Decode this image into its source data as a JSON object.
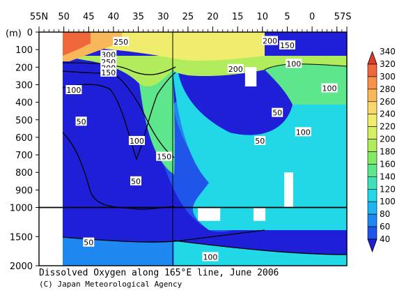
{
  "chart_data": {
    "type": "heatmap",
    "title": "Dissolved Oxygen along 165°E line, June 2006",
    "credit": "(C) Japan Meteorological Agency",
    "x_axis": {
      "ticks": [
        {
          "value": 55,
          "label": "55N"
        },
        {
          "value": 50,
          "label": "50"
        },
        {
          "value": 45,
          "label": "45"
        },
        {
          "value": 40,
          "label": "40"
        },
        {
          "value": 35,
          "label": "35"
        },
        {
          "value": 30,
          "label": "30"
        },
        {
          "value": 25,
          "label": "25"
        },
        {
          "value": 20,
          "label": "20"
        },
        {
          "value": 15,
          "label": "15"
        },
        {
          "value": 10,
          "label": "10"
        },
        {
          "value": 5,
          "label": "5"
        },
        {
          "value": 0,
          "label": "0"
        },
        {
          "value": -5,
          "label": "5"
        },
        {
          "value": -7,
          "label": "7S"
        }
      ],
      "range": [
        55,
        -7
      ]
    },
    "y_axis": {
      "unit_label": "(m)",
      "upper_ticks": [
        {
          "value": 0,
          "label": "0"
        },
        {
          "value": 100,
          "label": "100"
        },
        {
          "value": 200,
          "label": "200"
        },
        {
          "value": 300,
          "label": "300"
        },
        {
          "value": 400,
          "label": "400"
        },
        {
          "value": 500,
          "label": "500"
        },
        {
          "value": 600,
          "label": "600"
        },
        {
          "value": 700,
          "label": "700"
        },
        {
          "value": 800,
          "label": "800"
        },
        {
          "value": 900,
          "label": "900"
        },
        {
          "value": 1000,
          "label": "1000"
        }
      ],
      "lower_ticks": [
        {
          "value": 1500,
          "label": "1500"
        },
        {
          "value": 2000,
          "label": "2000"
        }
      ],
      "range": [
        0,
        2000
      ],
      "scale_break_at": 1000
    },
    "colorbar": {
      "levels": [
        40,
        60,
        80,
        100,
        120,
        140,
        160,
        180,
        200,
        220,
        240,
        260,
        280,
        300,
        320,
        340
      ],
      "colors": [
        "#1f1fd8",
        "#1f55e8",
        "#1f88f0",
        "#1fb4f4",
        "#22d8e6",
        "#3fe2b8",
        "#5ee68c",
        "#84ea66",
        "#b0ec5c",
        "#d6ef62",
        "#efec6e",
        "#f8d86a",
        "#f8b85a",
        "#f6924a",
        "#ee683c",
        "#e03c2a"
      ]
    },
    "contour_labels": [
      {
        "text": "250",
        "lat": 38.5,
        "depth": 55
      },
      {
        "text": "200",
        "lat": 8.5,
        "depth": 50
      },
      {
        "text": "150",
        "lat": 5.0,
        "depth": 75
      },
      {
        "text": "300",
        "lat": 41.0,
        "depth": 130
      },
      {
        "text": "250",
        "lat": 41.0,
        "depth": 170
      },
      {
        "text": "200",
        "lat": 41.0,
        "depth": 205
      },
      {
        "text": "150",
        "lat": 41.0,
        "depth": 230
      },
      {
        "text": "100",
        "lat": 3.7,
        "depth": 180
      },
      {
        "text": "200",
        "lat": 15.4,
        "depth": 210
      },
      {
        "text": "100",
        "lat": 48.0,
        "depth": 330
      },
      {
        "text": "100",
        "lat": -3.5,
        "depth": 320
      },
      {
        "text": "50",
        "lat": 46.5,
        "depth": 510
      },
      {
        "text": "50",
        "lat": 7.0,
        "depth": 460
      },
      {
        "text": "100",
        "lat": 1.8,
        "depth": 570
      },
      {
        "text": "100",
        "lat": 35.3,
        "depth": 620
      },
      {
        "text": "50",
        "lat": 10.5,
        "depth": 620
      },
      {
        "text": "150",
        "lat": 29.8,
        "depth": 710
      },
      {
        "text": "50",
        "lat": 35.5,
        "depth": 850
      },
      {
        "text": "50",
        "lat": 45.0,
        "depth": 1600
      },
      {
        "text": "100",
        "lat": 20.5,
        "depth": 1850
      }
    ],
    "missing_data": [
      {
        "lat": [
          13.5,
          11.2
        ],
        "depth": [
          200,
          310
        ]
      },
      {
        "lat": [
          5.6,
          3.8
        ],
        "depth": [
          800,
          1000
        ]
      },
      {
        "lat": [
          23.0,
          18.5
        ],
        "depth": [
          1000,
          1230
        ]
      },
      {
        "lat": [
          11.8,
          9.4
        ],
        "depth": [
          1000,
          1230
        ]
      }
    ]
  }
}
